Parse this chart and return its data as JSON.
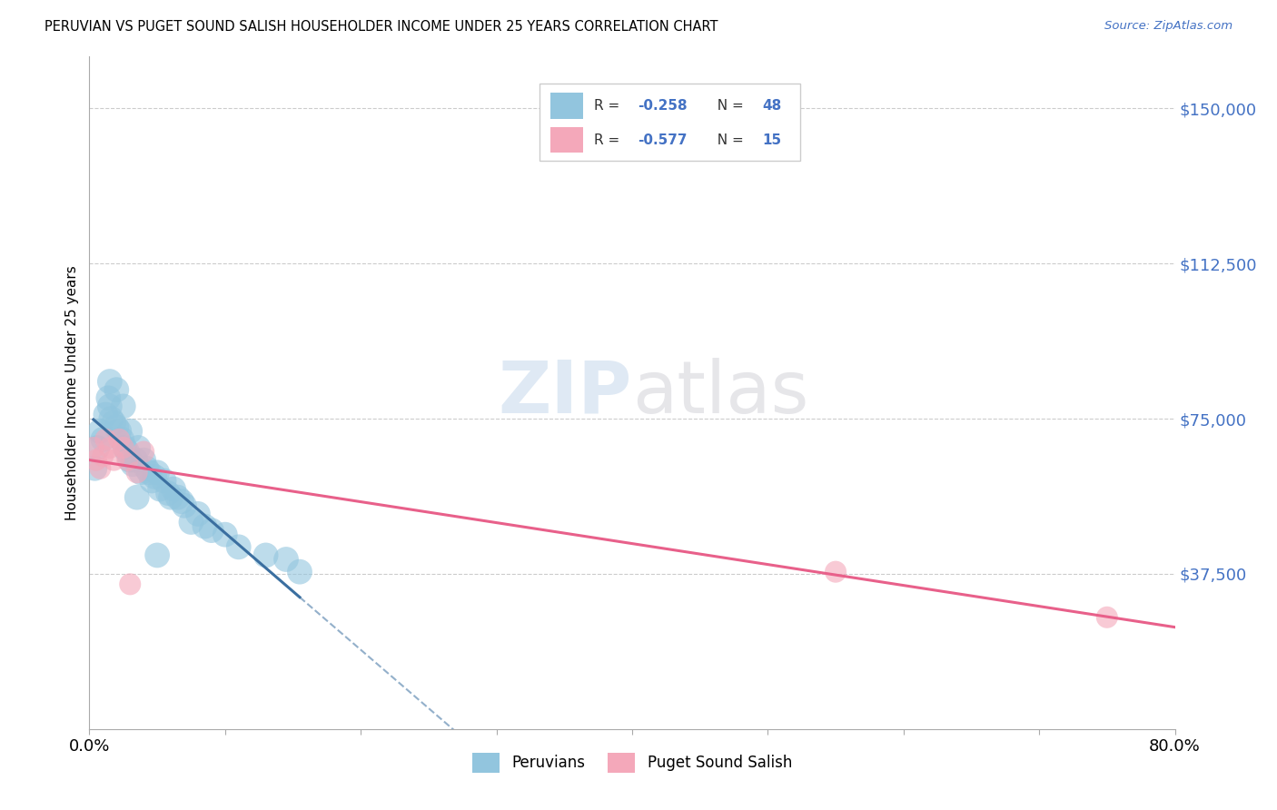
{
  "title": "PERUVIAN VS PUGET SOUND SALISH HOUSEHOLDER INCOME UNDER 25 YEARS CORRELATION CHART",
  "source": "Source: ZipAtlas.com",
  "ylabel": "Householder Income Under 25 years",
  "xlim": [
    0.0,
    0.8
  ],
  "ylim": [
    0,
    162500
  ],
  "ytick_vals": [
    37500,
    75000,
    112500,
    150000
  ],
  "ytick_labels": [
    "$37,500",
    "$75,000",
    "$112,500",
    "$150,000"
  ],
  "grid_vals": [
    37500,
    75000,
    112500,
    150000
  ],
  "legend_blue_r": "-0.258",
  "legend_blue_n": "48",
  "legend_pink_r": "-0.577",
  "legend_pink_n": "15",
  "blue_color": "#92c5de",
  "pink_color": "#f4a8ba",
  "blue_line_color": "#3b6fa0",
  "pink_line_color": "#e8608a",
  "blue_x": [
    0.004,
    0.006,
    0.008,
    0.01,
    0.012,
    0.014,
    0.015,
    0.016,
    0.018,
    0.02,
    0.022,
    0.024,
    0.026,
    0.028,
    0.03,
    0.03,
    0.032,
    0.034,
    0.036,
    0.038,
    0.04,
    0.042,
    0.044,
    0.046,
    0.048,
    0.05,
    0.052,
    0.055,
    0.058,
    0.06,
    0.062,
    0.065,
    0.068,
    0.07,
    0.075,
    0.08,
    0.085,
    0.09,
    0.1,
    0.11,
    0.13,
    0.015,
    0.02,
    0.025,
    0.035,
    0.05,
    0.145,
    0.155
  ],
  "blue_y": [
    63000,
    68000,
    72000,
    70000,
    76000,
    80000,
    78000,
    75000,
    74000,
    73000,
    72000,
    70000,
    68000,
    67000,
    72000,
    65000,
    64000,
    65000,
    68000,
    62000,
    65000,
    63000,
    62000,
    60000,
    61000,
    62000,
    58000,
    60000,
    57000,
    56000,
    58000,
    56000,
    55000,
    54000,
    50000,
    52000,
    49000,
    48000,
    47000,
    44000,
    42000,
    84000,
    82000,
    78000,
    56000,
    42000,
    41000,
    38000
  ],
  "pink_x": [
    0.003,
    0.005,
    0.008,
    0.01,
    0.012,
    0.015,
    0.018,
    0.022,
    0.025,
    0.028,
    0.03,
    0.035,
    0.04,
    0.55,
    0.75
  ],
  "pink_y": [
    68000,
    65000,
    63000,
    66000,
    70000,
    68000,
    65000,
    70000,
    68000,
    65000,
    35000,
    62000,
    67000,
    38000,
    27000
  ],
  "blue_line_xrange": [
    0.003,
    0.155
  ],
  "blue_line_solid_end": 0.155,
  "blue_line_dash_end": 0.75,
  "pink_line_xrange": [
    0.0,
    0.8
  ]
}
